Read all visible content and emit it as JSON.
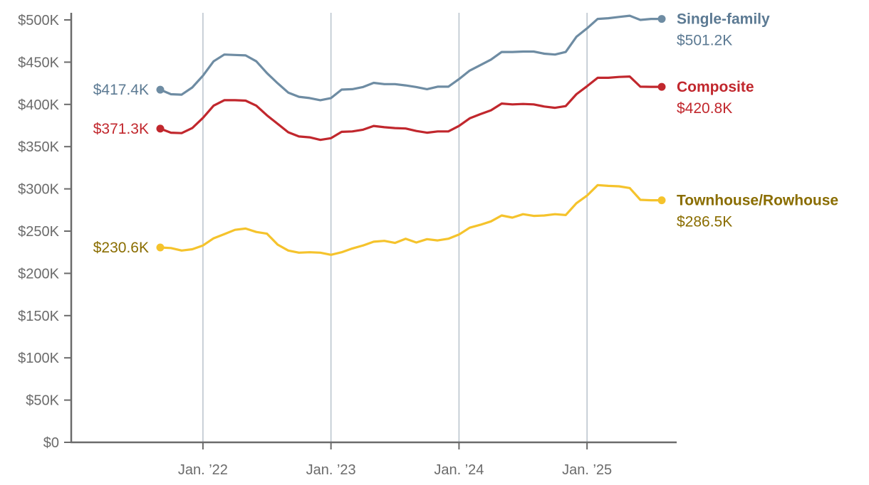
{
  "chart_data": {
    "type": "line",
    "x_dates": [
      "2021-09",
      "2021-10",
      "2021-11",
      "2021-12",
      "2022-01",
      "2022-02",
      "2022-03",
      "2022-04",
      "2022-05",
      "2022-06",
      "2022-07",
      "2022-08",
      "2022-09",
      "2022-10",
      "2022-11",
      "2022-12",
      "2023-01",
      "2023-02",
      "2023-03",
      "2023-04",
      "2023-05",
      "2023-06",
      "2023-07",
      "2023-08",
      "2023-09",
      "2023-10",
      "2023-11",
      "2023-12",
      "2024-01",
      "2024-02",
      "2024-03",
      "2024-04",
      "2024-05",
      "2024-06",
      "2024-07",
      "2024-08",
      "2024-09",
      "2024-10",
      "2024-11",
      "2024-12",
      "2025-01",
      "2025-02",
      "2025-03",
      "2025-04",
      "2025-05",
      "2025-06",
      "2025-07",
      "2025-08"
    ],
    "ylim": [
      0,
      500000
    ],
    "yticks": [
      0,
      50000,
      100000,
      150000,
      200000,
      250000,
      300000,
      350000,
      400000,
      450000,
      500000
    ],
    "ytick_labels": [
      "$0",
      "$50K",
      "$100K",
      "$150K",
      "$200K",
      "$250K",
      "$300K",
      "$350K",
      "$400K",
      "$450K",
      "$500K"
    ],
    "xtick_dates": [
      "2022-01",
      "2023-01",
      "2024-01",
      "2025-01"
    ],
    "xtick_labels": [
      "Jan. ’22",
      "Jan. ’23",
      "Jan. ’24",
      "Jan. ’25"
    ],
    "grid": "vertical lines at January",
    "legend": "direct labels at line ends",
    "series": [
      {
        "name": "Single-family",
        "color": "#6e8ca3",
        "start_label": "$417.4K",
        "end_label": "$501.2K",
        "values": [
          417400,
          412000,
          411500,
          420000,
          434000,
          451000,
          459000,
          458500,
          458000,
          451000,
          437000,
          425000,
          414000,
          409000,
          407500,
          405000,
          407500,
          417500,
          418000,
          420500,
          425500,
          424000,
          424000,
          422500,
          420500,
          418000,
          421000,
          421000,
          430000,
          440000,
          446500,
          453000,
          462000,
          462000,
          462500,
          462500,
          460000,
          459000,
          462000,
          480000,
          490000,
          501200,
          502000,
          503500,
          505000,
          500000,
          501200,
          501200
        ]
      },
      {
        "name": "Composite",
        "color": "#c1272d",
        "start_label": "$371.3K",
        "end_label": "$420.8K",
        "values": [
          371300,
          366500,
          366000,
          372000,
          384000,
          398500,
          405000,
          405000,
          404500,
          398500,
          387000,
          377000,
          367000,
          362000,
          361000,
          358000,
          360000,
          367500,
          368000,
          370000,
          374500,
          373000,
          372000,
          371500,
          368500,
          366500,
          368000,
          368000,
          374500,
          383500,
          388500,
          393000,
          401000,
          400000,
          400500,
          400000,
          397500,
          396000,
          398000,
          412000,
          421500,
          431500,
          431500,
          432500,
          433000,
          421000,
          420800,
          420800
        ]
      },
      {
        "name": "Townhouse/Rowhouse",
        "color": "#f5c32c",
        "start_label": "$230.6K",
        "end_label": "$286.5K",
        "values": [
          230600,
          230000,
          227000,
          228500,
          233000,
          241500,
          246500,
          251500,
          253000,
          249000,
          247000,
          234000,
          227000,
          224500,
          225000,
          224500,
          222000,
          225000,
          229500,
          233000,
          237500,
          238500,
          236000,
          241000,
          236500,
          240500,
          239000,
          241000,
          246000,
          254000,
          257500,
          261500,
          268500,
          266000,
          270000,
          268000,
          268500,
          270000,
          269000,
          283000,
          292000,
          304500,
          303500,
          303000,
          301000,
          287000,
          286500,
          286500
        ]
      }
    ]
  }
}
